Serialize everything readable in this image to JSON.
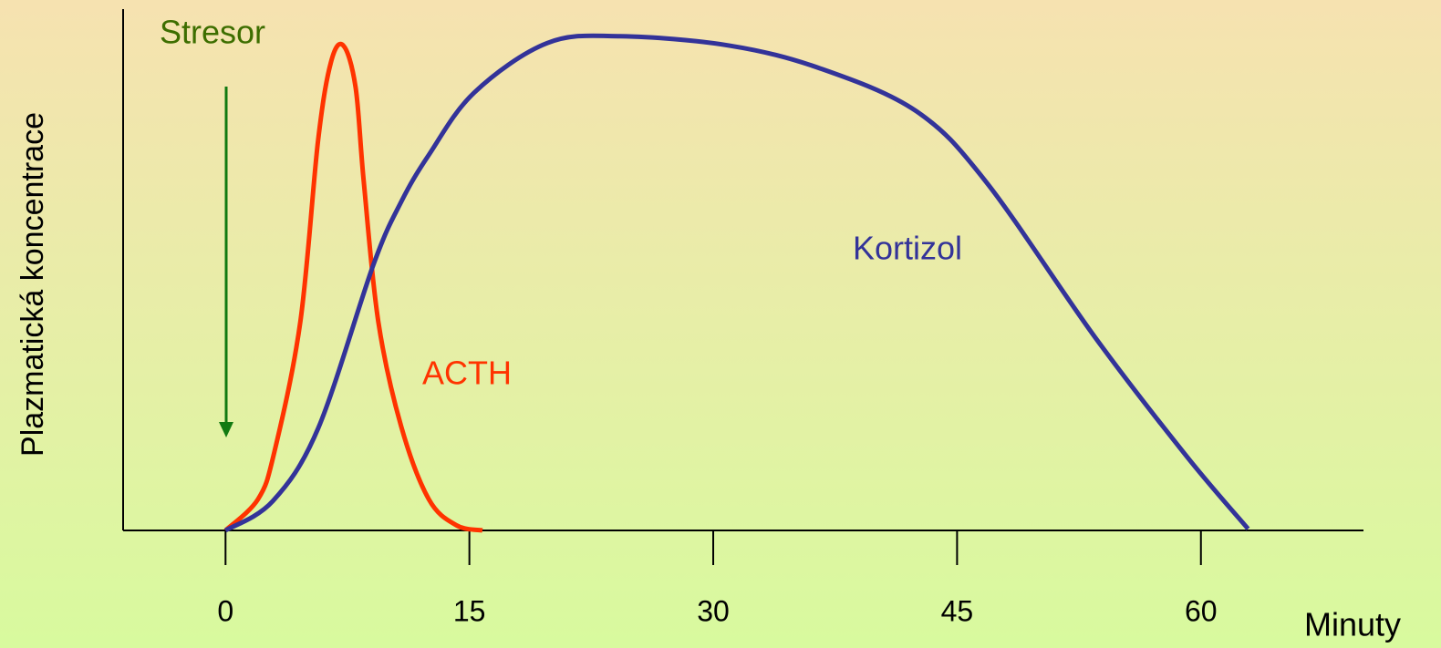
{
  "chart_data": {
    "type": "line",
    "xlabel": "Minuty",
    "ylabel": "Plazmatická koncentrace",
    "annotations": [
      "Stresor"
    ],
    "xlim": [
      -6.3,
      70
    ],
    "ylim": [
      0,
      100
    ],
    "xticks": [
      0,
      15,
      30,
      45,
      60
    ],
    "grid": false,
    "series": [
      {
        "name": "ACTH",
        "color": "#ff3300",
        "x": [
          0,
          2,
          3,
          4.6,
          5.7,
          6.5,
          7.25,
          8,
          8.5,
          9.4,
          10.8,
          12.5,
          14.2,
          15.8
        ],
        "values": [
          0,
          6,
          15,
          40,
          75,
          90,
          93,
          85,
          67,
          40,
          20,
          6,
          1,
          0
        ]
      },
      {
        "name": "Kortizol",
        "color": "#333399",
        "x": [
          0,
          2.9,
          5.7,
          9.1,
          10.8,
          12.5,
          15.3,
          19.8,
          24.3,
          31,
          36.6,
          42.5,
          46.8,
          53.5,
          59.1,
          62.9
        ],
        "values": [
          0,
          5.6,
          19.6,
          51,
          63,
          72,
          84,
          93.5,
          94.8,
          93,
          88.6,
          80.4,
          66.8,
          37,
          14.3,
          0.3
        ]
      }
    ]
  }
}
